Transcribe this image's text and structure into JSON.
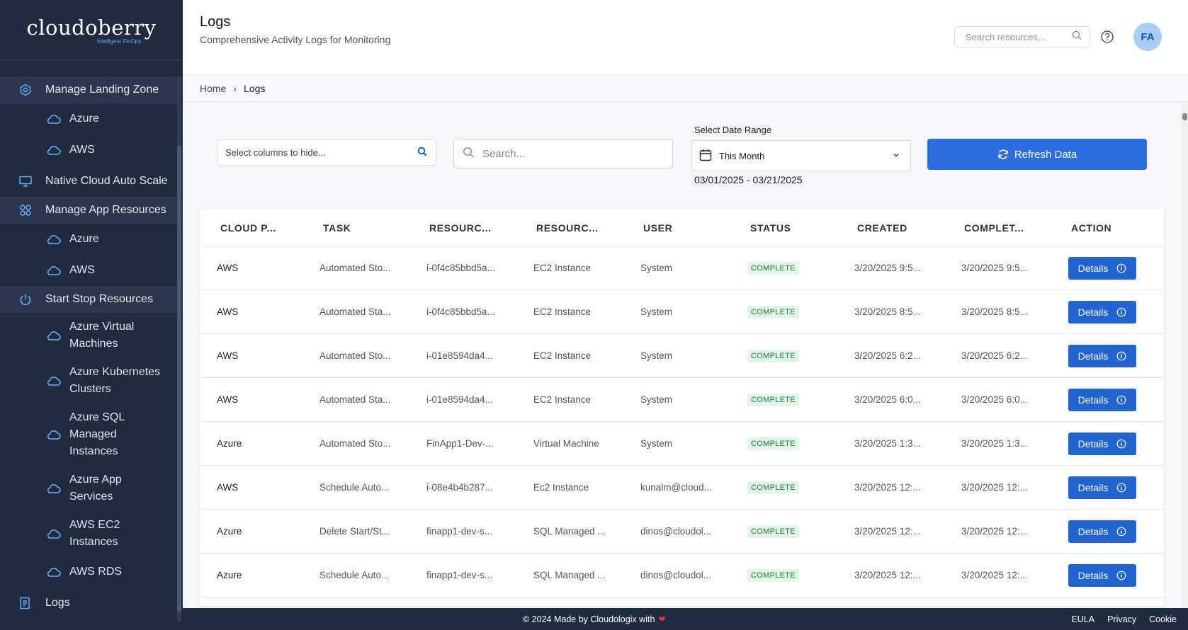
{
  "brand": {
    "name": "cloudoberry",
    "tagline": "Intelligent FinOps"
  },
  "sidebar": {
    "items": [
      {
        "label": "Manage Landing Zone",
        "type": "section",
        "icon": "hexagon-gear-icon"
      },
      {
        "label": "Azure",
        "type": "sub",
        "icon": "cloud-icon"
      },
      {
        "label": "AWS",
        "type": "sub",
        "icon": "cloud-icon"
      },
      {
        "label": "Native Cloud Auto Scale",
        "type": "item",
        "icon": "monitor-icon"
      },
      {
        "label": "Manage App Resources",
        "type": "section",
        "icon": "apps-icon"
      },
      {
        "label": "Azure",
        "type": "sub",
        "icon": "cloud-icon"
      },
      {
        "label": "AWS",
        "type": "sub",
        "icon": "cloud-icon"
      },
      {
        "label": "Start Stop Resources",
        "type": "section",
        "icon": "power-icon"
      },
      {
        "label": "Azure Virtual Machines",
        "type": "sub",
        "icon": "cloud-icon"
      },
      {
        "label": "Azure Kubernetes Clusters",
        "type": "sub",
        "icon": "cloud-icon"
      },
      {
        "label": "Azure SQL Managed Instances",
        "type": "sub",
        "icon": "cloud-icon"
      },
      {
        "label": "Azure App Services",
        "type": "sub",
        "icon": "cloud-icon"
      },
      {
        "label": "AWS EC2 Instances",
        "type": "sub",
        "icon": "cloud-icon"
      },
      {
        "label": "AWS RDS",
        "type": "sub",
        "icon": "cloud-icon"
      },
      {
        "label": "Logs",
        "type": "item",
        "icon": "logs-icon"
      }
    ]
  },
  "header": {
    "title": "Logs",
    "subtitle": "Comprehensive Activity Logs for Monitoring",
    "search_placeholder": "Search resources...",
    "avatar_initials": "FA"
  },
  "breadcrumb": {
    "home": "Home",
    "current": "Logs"
  },
  "filters": {
    "columns_placeholder": "Select columns to hide...",
    "search_placeholder": "Search...",
    "date_label": "Select Date Range",
    "date_value": "This Month",
    "date_range": "03/01/2025 - 03/21/2025",
    "refresh_label": "Refresh Data"
  },
  "table": {
    "columns": [
      "CLOUD P...",
      "TASK",
      "RESOURC...",
      "RESOURC...",
      "USER",
      "STATUS",
      "CREATED",
      "COMPLET...",
      "ACTION"
    ],
    "action_label": "Details",
    "rows": [
      {
        "cloud": "AWS",
        "task": "Automated Sto...",
        "resource_id": "i-0f4c85bbd5a...",
        "resource_type": "EC2 Instance",
        "user": "System",
        "status": "COMPLETE",
        "created": "3/20/2025 9:5...",
        "completed": "3/20/2025 9:5..."
      },
      {
        "cloud": "AWS",
        "task": "Automated Sta...",
        "resource_id": "i-0f4c85bbd5a...",
        "resource_type": "EC2 Instance",
        "user": "System",
        "status": "COMPLETE",
        "created": "3/20/2025 8:5...",
        "completed": "3/20/2025 8:5..."
      },
      {
        "cloud": "AWS",
        "task": "Automated Sto...",
        "resource_id": "i-01e8594da4...",
        "resource_type": "EC2 Instance",
        "user": "System",
        "status": "COMPLETE",
        "created": "3/20/2025 6:2...",
        "completed": "3/20/2025 6:2..."
      },
      {
        "cloud": "AWS",
        "task": "Automated Sta...",
        "resource_id": "i-01e8594da4...",
        "resource_type": "EC2 Instance",
        "user": "System",
        "status": "COMPLETE",
        "created": "3/20/2025 6:0...",
        "completed": "3/20/2025 6:0..."
      },
      {
        "cloud": "Azure",
        "task": "Automated Sto...",
        "resource_id": "FinApp1-Dev-...",
        "resource_type": "Virtual Machine",
        "user": "System",
        "status": "COMPLETE",
        "created": "3/20/2025 1:3...",
        "completed": "3/20/2025 1:3..."
      },
      {
        "cloud": "AWS",
        "task": "Schedule Auto...",
        "resource_id": "i-08e4b4b287...",
        "resource_type": "Ec2 Instance",
        "user": "kunalm@cloud...",
        "status": "COMPLETE",
        "created": "3/20/2025 12:...",
        "completed": "3/20/2025 12:..."
      },
      {
        "cloud": "Azure",
        "task": "Delete Start/St...",
        "resource_id": "finapp1-dev-s...",
        "resource_type": "SQL Managed ...",
        "user": "dinos@cloudol...",
        "status": "COMPLETE",
        "created": "3/20/2025 12:...",
        "completed": "3/20/2025 12:..."
      },
      {
        "cloud": "Azure",
        "task": "Schedule Auto...",
        "resource_id": "finapp1-dev-s...",
        "resource_type": "SQL Managed ...",
        "user": "dinos@cloudol...",
        "status": "COMPLETE",
        "created": "3/20/2025 12:...",
        "completed": "3/20/2025 12:..."
      }
    ]
  },
  "footer": {
    "copyright": "© 2024 Made by Cloudologix with",
    "links": [
      "EULA",
      "Privacy",
      "Cookie"
    ]
  },
  "colors": {
    "sidebar_bg": "#1f2b3e",
    "primary": "#2b6cde",
    "status_bg": "#e3f5e8",
    "status_text": "#1e7a3c"
  }
}
